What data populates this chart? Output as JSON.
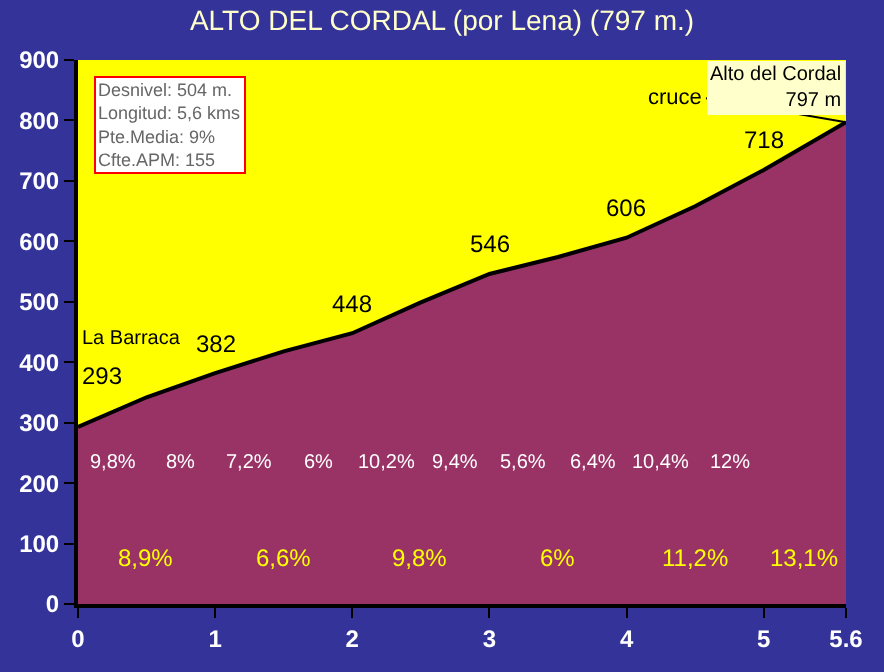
{
  "chart_data": {
    "type": "area",
    "title": "ALTO DEL CORDAL (por Lena) (797 m.)",
    "x": [
      0,
      0.5,
      1,
      1.5,
      2,
      2.5,
      3,
      3.5,
      4,
      4.5,
      5,
      5.6
    ],
    "series": [
      {
        "color": "#993366",
        "values": [
          293,
          342,
          382,
          418,
          448,
          499,
          546,
          574,
          606,
          658,
          718,
          797
        ],
        "value_labels": [
          "293",
          null,
          "382",
          null,
          "448",
          null,
          "546",
          null,
          "606",
          null,
          "718",
          null
        ]
      }
    ],
    "xlim": [
      0,
      5.6
    ],
    "xticks": [
      0,
      1,
      2,
      3,
      4,
      5,
      5.6
    ],
    "ylim": [
      0,
      900
    ],
    "yticks": [
      0,
      100,
      200,
      300,
      400,
      500,
      600,
      700,
      800,
      900
    ],
    "grid": false,
    "annotations": [
      "Desnivel: 504 m.\nLongitud: 5,6 kms\nPte.Media: 9%\nCfte.APM: 155",
      "La Barraca",
      {
        "text": "cruce",
        "x": 5.6,
        "y": 797
      },
      "Alto del Cordal\n797 m",
      "9,8%",
      "8%",
      "7,2%",
      "6%",
      "10,2%",
      "9,4%",
      "5,6%",
      "6,4%",
      "10,4%",
      "12%",
      "8,9%",
      "6,6%",
      "9,8%",
      "6%",
      "11,2%",
      "13,1%"
    ]
  }
}
